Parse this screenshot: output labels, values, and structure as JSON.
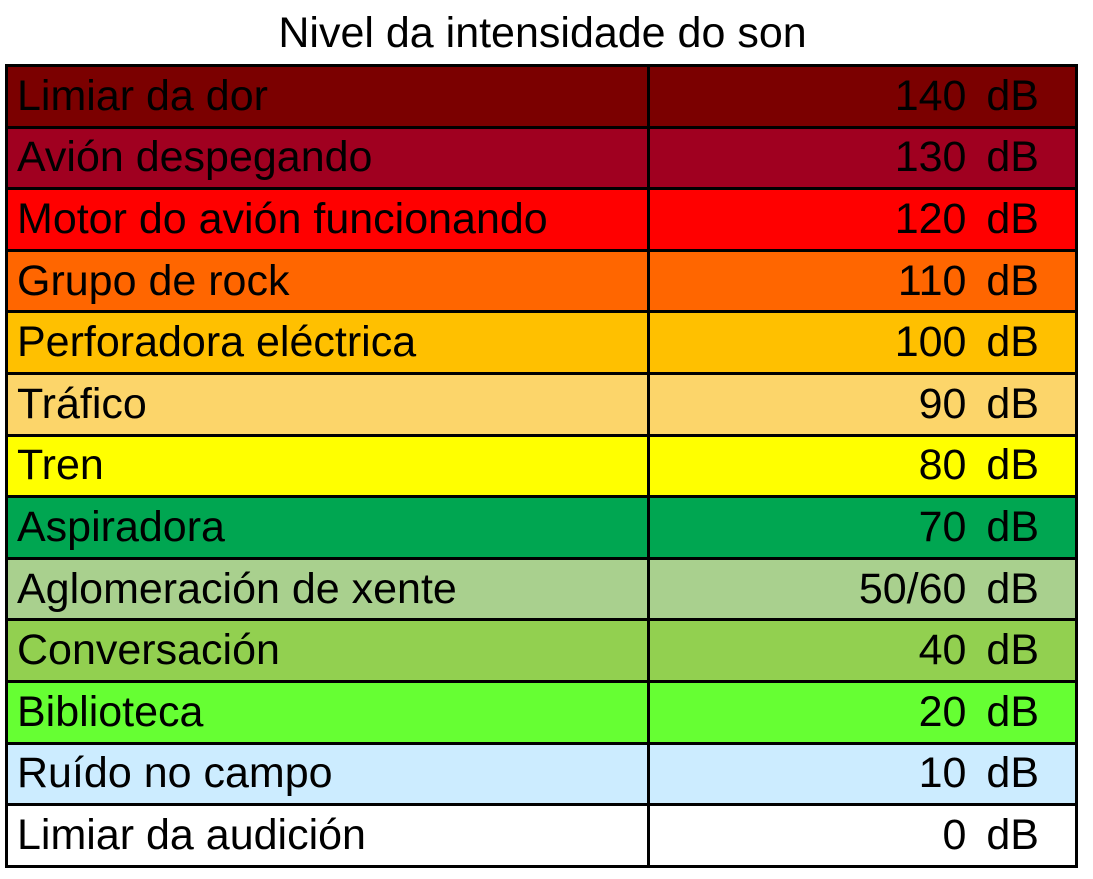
{
  "chart_data": {
    "type": "table",
    "title": "Nivel da intensidade do son",
    "rows": [
      {
        "label": "Limiar da dor",
        "value": "140 dB",
        "color": "#7B0000"
      },
      {
        "label": "Avión despegando",
        "value": "130 dB",
        "color": "#A00020"
      },
      {
        "label": "Motor do avión funcionando",
        "value": "120 dB",
        "color": "#FF0000"
      },
      {
        "label": "Grupo de rock",
        "value": "110 dB",
        "color": "#FF6600"
      },
      {
        "label": "Perforadora eléctrica",
        "value": "100 dB",
        "color": "#FFC000"
      },
      {
        "label": "Tráfico",
        "value": "90 dB",
        "color": "#FCD56A"
      },
      {
        "label": "Tren",
        "value": "80 dB",
        "color": "#FFFF00"
      },
      {
        "label": "Aspiradora",
        "value": "70 dB",
        "color": "#00A651"
      },
      {
        "label": "Aglomeración de xente",
        "value": "50/60 dB",
        "color": "#A9D08E"
      },
      {
        "label": "Conversación",
        "value": "40 dB",
        "color": "#92D050"
      },
      {
        "label": "Biblioteca",
        "value": "20 dB",
        "color": "#66FF33"
      },
      {
        "label": "Ruído no campo",
        "value": "10 dB",
        "color": "#CCECFF"
      },
      {
        "label": "Limiar da audición",
        "value": "0 dB",
        "color": "#FFFFFF"
      }
    ]
  }
}
